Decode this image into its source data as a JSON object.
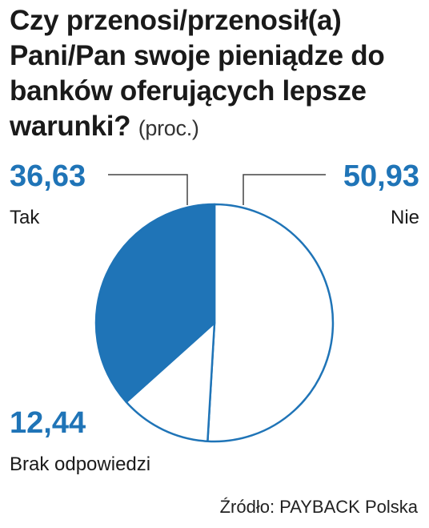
{
  "title": "Czy przenosi/przenosił(a) Pani/Pan swoje pieniądze do banków oferujących lepsze warunki?",
  "unit": "(proc.)",
  "source": "Źródło: PAYBACK Polska",
  "colors": {
    "accent": "#1f74b7",
    "text": "#1a1a1a",
    "slice_fill_light": "#ffffff",
    "outline": "#1f74b7"
  },
  "chart_data": {
    "type": "pie",
    "title": "Czy przenosi/przenosił(a) Pani/Pan swoje pieniądze do banków oferujących lepsze warunki?",
    "unit": "(proc.)",
    "slices": [
      {
        "label": "Nie",
        "value": 50.93,
        "value_text": "50,93",
        "fill": "#ffffff"
      },
      {
        "label": "Brak odpowiedzi",
        "value": 12.44,
        "value_text": "12,44",
        "fill": "#ffffff"
      },
      {
        "label": "Tak",
        "value": 36.63,
        "value_text": "36,63",
        "fill": "#1f74b7"
      }
    ],
    "start": "12 o'clock, clockwise"
  }
}
